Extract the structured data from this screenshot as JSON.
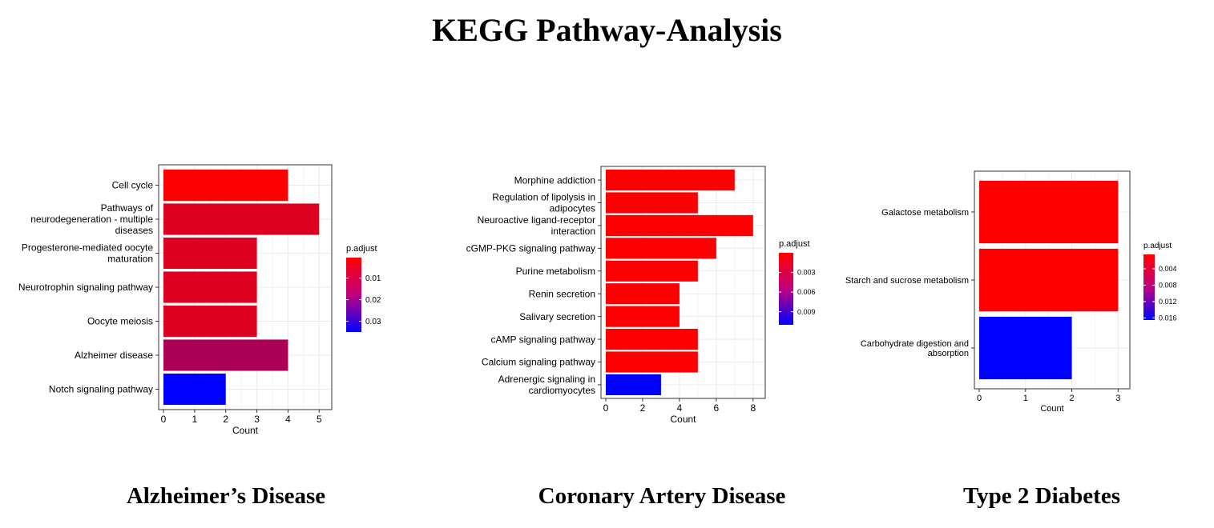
{
  "title": "KEGG Pathway-Analysis",
  "colors": {
    "low_padj": "#ff0000",
    "high_padj": "#0000ff",
    "panel_border": "#333333",
    "grid": "#ebebeb"
  },
  "chart_data": [
    {
      "type": "bar",
      "orientation": "horizontal",
      "panel_title": "Alzheimer’s Disease",
      "xlabel": "Count",
      "xlim": [
        0,
        5.25
      ],
      "xticks": [
        0,
        1,
        2,
        3,
        4,
        5
      ],
      "categories": [
        [
          "Cell cycle"
        ],
        [
          "Pathways of",
          "neurodegeneration - multiple",
          "diseases"
        ],
        [
          "Progesterone-mediated oocyte",
          "maturation"
        ],
        [
          "Neurotrophin signaling pathway"
        ],
        [
          "Oocyte meiosis"
        ],
        [
          "Alzheimer disease"
        ],
        [
          "Notch signaling pathway"
        ]
      ],
      "values": [
        4,
        5,
        3,
        3,
        3,
        4,
        2
      ],
      "p_adjust": [
        0.0008,
        0.005,
        0.005,
        0.005,
        0.005,
        0.012,
        0.035
      ],
      "legend": {
        "title": "p.adjust",
        "range": [
          0.0005,
          0.035
        ],
        "ticks": [
          0.01,
          0.02,
          0.03
        ],
        "tick_labels": [
          "0.01",
          "0.02",
          "0.03"
        ]
      },
      "grid": true
    },
    {
      "type": "bar",
      "orientation": "horizontal",
      "panel_title": "Coronary Artery Disease",
      "xlabel": "Count",
      "xlim": [
        0,
        8.4
      ],
      "xticks": [
        0,
        2,
        4,
        6,
        8
      ],
      "categories": [
        [
          "Morphine addiction"
        ],
        [
          "Regulation of lipolysis in",
          "adipocytes"
        ],
        [
          "Neuroactive ligand-receptor",
          "interaction"
        ],
        [
          "cGMP-PKG signaling pathway"
        ],
        [
          "Purine metabolism"
        ],
        [
          "Renin secretion"
        ],
        [
          "Salivary secretion"
        ],
        [
          "cAMP signaling pathway"
        ],
        [
          "Calcium signaling pathway"
        ],
        [
          "Adrenergic signaling in",
          "cardiomyocytes"
        ]
      ],
      "values": [
        7,
        5,
        8,
        6,
        5,
        4,
        4,
        5,
        5,
        3
      ],
      "p_adjust": [
        0.0001,
        0.0001,
        0.0001,
        0.0001,
        0.0001,
        0.0001,
        0.0001,
        0.0001,
        0.0001,
        0.011
      ],
      "legend": {
        "title": "p.adjust",
        "range": [
          0.0,
          0.011
        ],
        "ticks": [
          0.003,
          0.006,
          0.009
        ],
        "tick_labels": [
          "0.003",
          "0.006",
          "0.009"
        ]
      },
      "grid": true
    },
    {
      "type": "bar",
      "orientation": "horizontal",
      "panel_title": "Type 2 Diabetes",
      "xlabel": "Count",
      "xlim": [
        0,
        3.15
      ],
      "xticks": [
        0,
        1,
        2,
        3
      ],
      "categories": [
        [
          "Galactose metabolism"
        ],
        [
          "Starch and sucrose metabolism"
        ],
        [
          "Carbohydrate digestion and",
          "absorption"
        ]
      ],
      "values": [
        3,
        3,
        2
      ],
      "p_adjust": [
        0.0005,
        0.0005,
        0.0165
      ],
      "legend": {
        "title": "p.adjust",
        "range": [
          0.0005,
          0.0165
        ],
        "ticks": [
          0.004,
          0.008,
          0.012,
          0.016
        ],
        "tick_labels": [
          "0.004",
          "0.008",
          "0.012",
          "0.016"
        ]
      },
      "grid": true
    }
  ]
}
